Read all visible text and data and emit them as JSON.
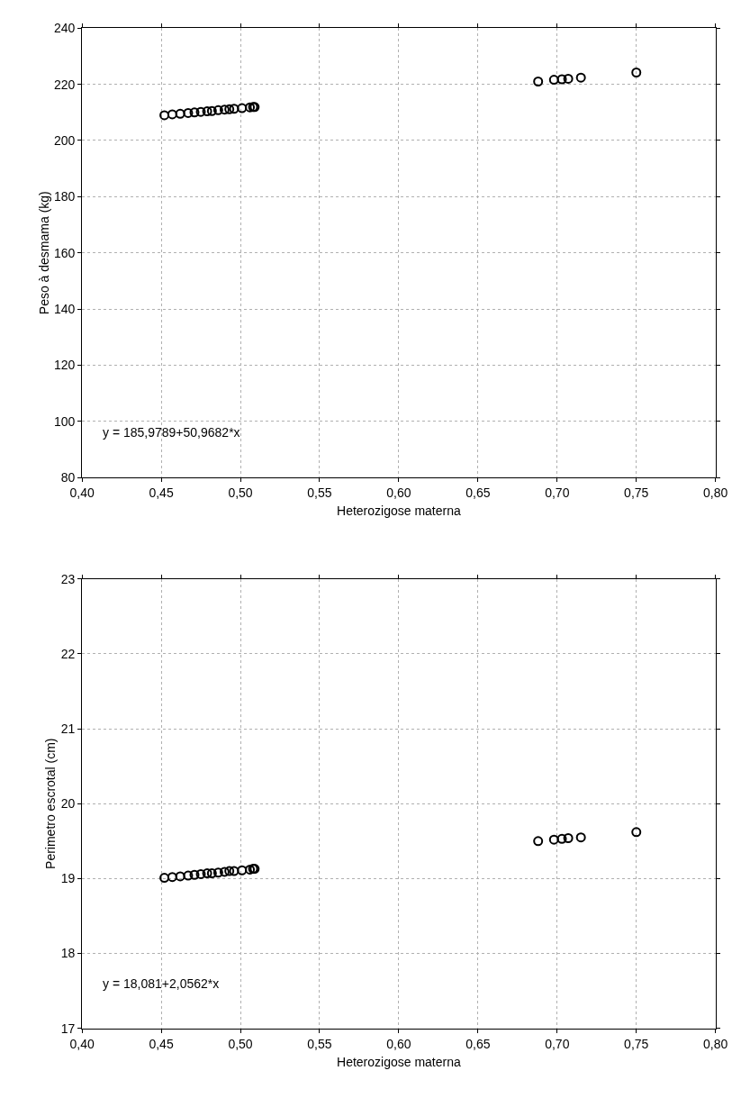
{
  "chart_data": [
    {
      "type": "scatter",
      "xlabel": "Heterozigose materna",
      "ylabel": "Peso à desmama (kg)",
      "x": [
        0.452,
        0.457,
        0.462,
        0.467,
        0.471,
        0.475,
        0.479,
        0.482,
        0.486,
        0.49,
        0.493,
        0.496,
        0.501,
        0.506,
        0.508,
        0.509,
        0.688,
        0.698,
        0.703,
        0.707,
        0.715,
        0.75
      ],
      "series": [
        {
          "color": "#000000",
          "values": [
            209.0,
            209.3,
            209.5,
            209.8,
            210.0,
            210.2,
            210.4,
            210.5,
            210.8,
            211.0,
            211.1,
            211.3,
            211.5,
            211.8,
            211.9,
            211.9,
            221.0,
            221.6,
            221.8,
            222.0,
            222.4,
            224.2
          ]
        }
      ],
      "xlim": [
        0.4,
        0.8
      ],
      "xticks": [
        {
          "value": 0.4,
          "label": "0,40"
        },
        {
          "value": 0.45,
          "label": "0,45"
        },
        {
          "value": 0.5,
          "label": "0,50"
        },
        {
          "value": 0.55,
          "label": "0,55"
        },
        {
          "value": 0.6,
          "label": "0,60"
        },
        {
          "value": 0.65,
          "label": "0,65"
        },
        {
          "value": 0.7,
          "label": "0,70"
        },
        {
          "value": 0.75,
          "label": "0,75"
        },
        {
          "value": 0.8,
          "label": "0,80"
        }
      ],
      "ylim": [
        80,
        240
      ],
      "yticks": [
        80,
        100,
        120,
        140,
        160,
        180,
        200,
        220,
        240
      ],
      "annotations": [
        "y = 185,9789+50,9682*x"
      ],
      "grid": true,
      "marker": "circle"
    },
    {
      "type": "scatter",
      "xlabel": "Heterozigose materna",
      "ylabel": "Perimetro escrotal (cm)",
      "x": [
        0.452,
        0.457,
        0.462,
        0.467,
        0.471,
        0.475,
        0.479,
        0.482,
        0.486,
        0.49,
        0.493,
        0.496,
        0.501,
        0.506,
        0.508,
        0.509,
        0.688,
        0.698,
        0.703,
        0.707,
        0.715,
        0.75
      ],
      "series": [
        {
          "color": "#000000",
          "values": [
            19.01,
            19.02,
            19.03,
            19.04,
            19.05,
            19.06,
            19.07,
            19.07,
            19.08,
            19.09,
            19.1,
            19.1,
            19.11,
            19.12,
            19.13,
            19.13,
            19.5,
            19.52,
            19.53,
            19.54,
            19.55,
            19.62
          ]
        }
      ],
      "xlim": [
        0.4,
        0.8
      ],
      "xticks": [
        {
          "value": 0.4,
          "label": "0,40"
        },
        {
          "value": 0.45,
          "label": "0,45"
        },
        {
          "value": 0.5,
          "label": "0,50"
        },
        {
          "value": 0.55,
          "label": "0,55"
        },
        {
          "value": 0.6,
          "label": "0,60"
        },
        {
          "value": 0.65,
          "label": "0,65"
        },
        {
          "value": 0.7,
          "label": "0,70"
        },
        {
          "value": 0.75,
          "label": "0,75"
        },
        {
          "value": 0.8,
          "label": "0,80"
        }
      ],
      "ylim": [
        17,
        23
      ],
      "yticks": [
        17,
        18,
        19,
        20,
        21,
        22,
        23
      ],
      "annotations": [
        "y = 18,081+2,0562*x"
      ],
      "grid": true,
      "marker": "circle"
    }
  ]
}
